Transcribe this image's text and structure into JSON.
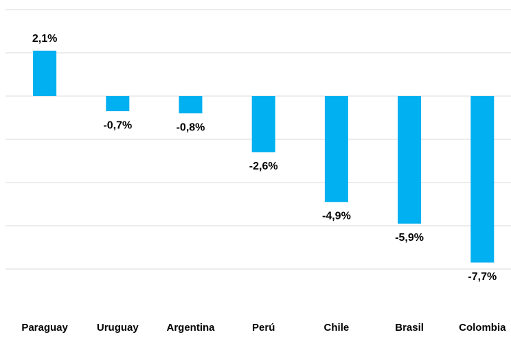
{
  "chart_data": {
    "type": "bar",
    "categories": [
      "Paraguay",
      "Uruguay",
      "Argentina",
      "Perú",
      "Chile",
      "Brasil",
      "Colombia"
    ],
    "values": [
      2.1,
      -0.7,
      -0.8,
      -2.6,
      -4.9,
      -5.9,
      -7.7
    ],
    "value_labels": [
      "2,1%",
      "-0,7%",
      "-0,8%",
      "-2,6%",
      "-4,9%",
      "-5,9%",
      "-7,7%"
    ],
    "color": "#00b0f0",
    "ylim": [
      -10,
      4
    ],
    "yticks": [
      -8,
      -6,
      -4,
      -2,
      0,
      2,
      4
    ],
    "grid": true
  }
}
